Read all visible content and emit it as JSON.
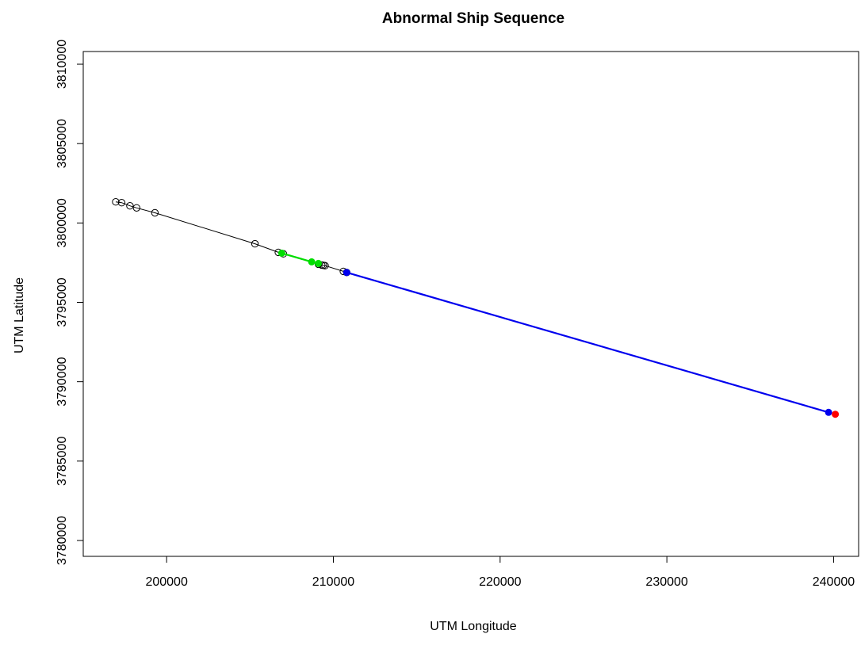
{
  "chart_data": {
    "type": "scatter",
    "title": "Abnormal Ship Sequence",
    "xlabel": "UTM Longitude",
    "ylabel": "UTM Latitude",
    "xlim": [
      195000,
      241500
    ],
    "ylim": [
      3779000,
      3810800
    ],
    "xticks": [
      200000,
      210000,
      220000,
      230000,
      240000
    ],
    "yticks": [
      3780000,
      3785000,
      3790000,
      3795000,
      3800000,
      3805000,
      3810000
    ],
    "grid": false,
    "colors": {
      "base": "#000000",
      "green": "#00dd00",
      "blue": "#0000ee",
      "red": "#ff0000"
    },
    "series": [
      {
        "color": "black",
        "style": "line-open-circles",
        "points": [
          [
            196950,
            3801330
          ],
          [
            197300,
            3801280
          ],
          [
            197800,
            3801080
          ],
          [
            198200,
            3800950
          ],
          [
            199300,
            3800640
          ],
          [
            205300,
            3798690
          ],
          [
            206700,
            3798150
          ],
          [
            207000,
            3798060
          ],
          [
            209100,
            3797400
          ],
          [
            209300,
            3797350
          ],
          [
            209400,
            3797330
          ],
          [
            209500,
            3797310
          ],
          [
            210600,
            3796950
          ],
          [
            210800,
            3796880
          ]
        ]
      },
      {
        "color": "green",
        "style": "line-filled-circles",
        "points": [
          [
            206900,
            3798100
          ],
          [
            208700,
            3797550
          ],
          [
            209100,
            3797450
          ]
        ]
      },
      {
        "color": "blue",
        "style": "line-filled-circles",
        "points": [
          [
            210800,
            3796880
          ],
          [
            239700,
            3788070
          ]
        ]
      },
      {
        "color": "red",
        "style": "filled-circle",
        "points": [
          [
            240100,
            3787950
          ]
        ]
      }
    ]
  }
}
